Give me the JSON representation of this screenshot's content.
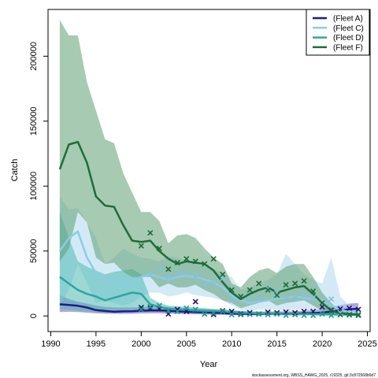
{
  "chart_data": {
    "type": "line",
    "xlabel": "Year",
    "ylabel": "Catch",
    "xlim": [
      1989.7,
      2025.3
    ],
    "ylim": [
      -12000,
      236000
    ],
    "x_ticks": [
      1990,
      1995,
      2000,
      2005,
      2010,
      2015,
      2020,
      2025
    ],
    "y_ticks": [
      0,
      50000,
      100000,
      150000,
      200000
    ],
    "legend": {
      "placement": "top-right",
      "entries": [
        "(Fleet A)",
        "(Fleet C)",
        "(Fleet D)",
        "(Fleet F)"
      ]
    },
    "footer": "stockassessment.org, WBSS_HAWG_2025, r19325, git:3c872568b0d7",
    "x_start": 1991,
    "series": [
      {
        "name": "(Fleet A)",
        "color": "#1f1a8a",
        "band_color": "#6f61b5",
        "estimate": [
          9000,
          8500,
          7800,
          6500,
          4500,
          3800,
          3200,
          3500,
          3600,
          4000,
          4200,
          4300,
          4000,
          3500,
          3300,
          3000,
          2800,
          2500,
          2200,
          1900,
          1700,
          1600,
          1600,
          1700,
          1700,
          1700,
          1800,
          2000,
          2200,
          2600,
          3200,
          4200,
          5200,
          5500
        ],
        "upper": [
          16000,
          13000,
          11000,
          9500,
          8000,
          7000,
          6500,
          6500,
          6500,
          6800,
          7000,
          7200,
          6800,
          6300,
          6000,
          5500,
          5200,
          4800,
          4500,
          4000,
          3600,
          3400,
          3300,
          3500,
          3500,
          3500,
          3600,
          4000,
          4500,
          5500,
          7000,
          8500,
          9500,
          10000
        ],
        "lower": [
          3000,
          3200,
          3000,
          2500,
          2000,
          1800,
          1600,
          1600,
          1700,
          1900,
          2000,
          2000,
          1800,
          1600,
          1500,
          1300,
          1200,
          1000,
          900,
          700,
          600,
          600,
          600,
          700,
          700,
          700,
          700,
          800,
          900,
          1000,
          1300,
          2000,
          2800,
          3000
        ],
        "observed": [
          null,
          null,
          null,
          null,
          null,
          null,
          null,
          null,
          null,
          6500,
          6000,
          5500,
          1500,
          5000,
          3500,
          11000,
          1500,
          1000,
          4000,
          3500,
          1500,
          2500,
          1500,
          3000,
          2500,
          3000,
          2500,
          3500,
          3500,
          7000,
          4500,
          5500,
          6000,
          5000
        ],
        "marker_color": "#2b0f6b"
      },
      {
        "name": "(Fleet C)",
        "color": "#8ccbe8",
        "band_color": "#aed8ef",
        "estimate": [
          50000,
          60000,
          65000,
          45000,
          33000,
          28000,
          26000,
          25000,
          27000,
          30000,
          32000,
          30000,
          28000,
          30000,
          31000,
          30000,
          28000,
          26000,
          22000,
          16000,
          12000,
          10000,
          11000,
          12000,
          13000,
          14000,
          15000,
          14000,
          13000,
          12000,
          8000,
          5000,
          3000,
          2000
        ],
        "upper": [
          92000,
          82000,
          83000,
          72000,
          60000,
          40000,
          45000,
          52000,
          48000,
          45000,
          44000,
          42000,
          46000,
          45000,
          42000,
          40000,
          38000,
          36000,
          33000,
          30000,
          20000,
          22000,
          25000,
          28000,
          32000,
          48000,
          40000,
          32000,
          28000,
          25000,
          45000,
          15000,
          8000,
          6000
        ],
        "lower": [
          8000,
          20000,
          40000,
          25000,
          10000,
          12000,
          10000,
          8000,
          10000,
          15000,
          18000,
          18000,
          15000,
          16000,
          18000,
          16000,
          15000,
          14000,
          12000,
          8000,
          5000,
          4000,
          5000,
          5000,
          5000,
          4000,
          5000,
          5000,
          4000,
          4000,
          2000,
          800,
          500,
          300
        ],
        "observed": [
          null,
          null,
          null,
          null,
          null,
          null,
          null,
          null,
          null,
          null,
          32000,
          37000,
          30000,
          33000,
          33000,
          30000,
          24000,
          25000,
          29000,
          12000,
          15000,
          13000,
          13000,
          21000,
          18000,
          13000,
          14000,
          16000,
          14000,
          10000,
          13000,
          2500,
          1000,
          500
        ],
        "marker_color": "#7ec2ea"
      },
      {
        "name": "(Fleet D)",
        "color": "#2aa6a0",
        "band_color": "#4fb8b2",
        "estimate": [
          30000,
          25000,
          20000,
          17000,
          15000,
          12000,
          14000,
          16000,
          18000,
          17000,
          9000,
          7000,
          5500,
          5000,
          4500,
          4200,
          4000,
          3800,
          3500,
          3000,
          2500,
          2200,
          2000,
          1800,
          1700,
          1600,
          1500,
          1500,
          1400,
          1300,
          1200,
          1100,
          1000,
          1000
        ],
        "upper": [
          80000,
          60000,
          42000,
          38000,
          35000,
          32000,
          34000,
          35000,
          36000,
          32000,
          14000,
          10000,
          8000,
          7500,
          7000,
          6500,
          6000,
          5500,
          5000,
          4500,
          4000,
          3500,
          3200,
          3000,
          2800,
          2600,
          2500,
          2500,
          2400,
          2200,
          2000,
          1900,
          1800,
          1800
        ],
        "lower": [
          5000,
          5000,
          4000,
          3500,
          3000,
          2000,
          3000,
          3500,
          4000,
          3000,
          4000,
          3000,
          2500,
          2000,
          1800,
          1600,
          1500,
          1400,
          1200,
          1000,
          800,
          700,
          600,
          500,
          500,
          400,
          400,
          400,
          350,
          300,
          300,
          250,
          250,
          250
        ],
        "observed": [
          null,
          null,
          null,
          null,
          null,
          null,
          null,
          null,
          null,
          5000,
          7000,
          8000,
          4000,
          3500,
          6000,
          5000,
          1500,
          2000,
          3500,
          1000,
          1000,
          1200,
          1500,
          1000,
          1500,
          500,
          1000,
          500,
          500,
          1500,
          500,
          1000,
          800,
          1200
        ],
        "marker_color": "#1f9a8a"
      },
      {
        "name": "(Fleet F)",
        "color": "#1c6e38",
        "band_color": "#5e9e73",
        "estimate": [
          113000,
          132000,
          134000,
          118000,
          92000,
          85000,
          84000,
          70000,
          58000,
          57000,
          58000,
          50000,
          44000,
          40000,
          42000,
          41000,
          40000,
          35000,
          26000,
          18000,
          13000,
          17000,
          20000,
          22000,
          18000,
          20000,
          22000,
          23000,
          17000,
          10000,
          4000,
          2000,
          1500,
          1000
        ],
        "upper": [
          228000,
          216000,
          216000,
          180000,
          158000,
          136000,
          133000,
          110000,
          95000,
          80000,
          80000,
          73000,
          56000,
          62000,
          63000,
          60000,
          52000,
          45000,
          40000,
          25000,
          22000,
          30000,
          35000,
          37000,
          33000,
          38000,
          40000,
          40000,
          30000,
          18000,
          10000,
          4000,
          3000,
          2000
        ],
        "lower": [
          42000,
          52000,
          80000,
          72000,
          45000,
          40000,
          41000,
          34000,
          30000,
          30000,
          30000,
          22000,
          25000,
          22000,
          22000,
          24000,
          20000,
          17000,
          12000,
          10000,
          6000,
          8000,
          10000,
          12000,
          8000,
          10000,
          11000,
          12000,
          8000,
          4000,
          1000,
          500,
          300,
          200
        ],
        "observed": [
          null,
          null,
          null,
          null,
          null,
          null,
          null,
          null,
          null,
          54000,
          64000,
          52000,
          36000,
          41000,
          44000,
          42000,
          40000,
          44000,
          32000,
          20000,
          15000,
          20000,
          25000,
          20000,
          16000,
          24000,
          25000,
          27000,
          19000,
          10000,
          4000,
          1000,
          1000,
          500
        ],
        "marker_color": "#1a6b35"
      }
    ]
  }
}
